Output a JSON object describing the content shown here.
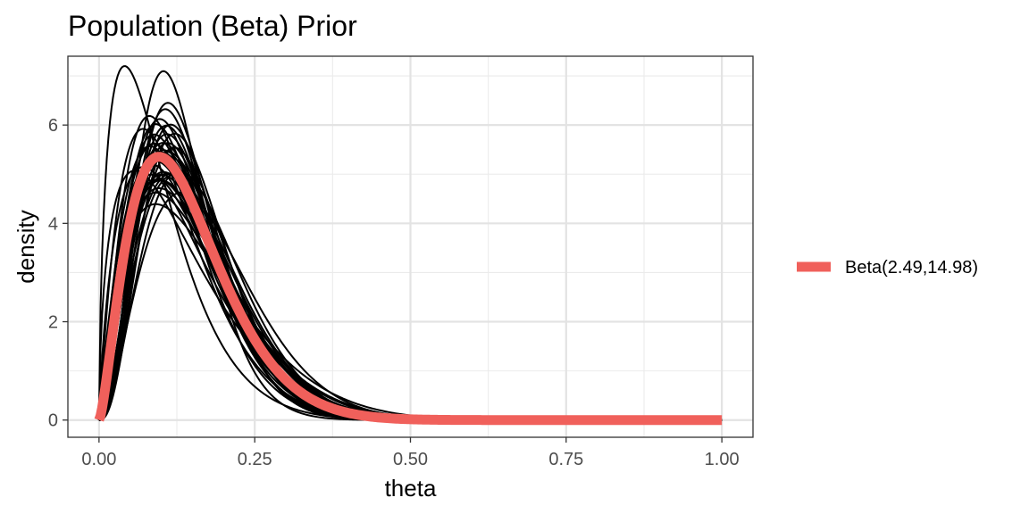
{
  "chart_data": {
    "type": "line",
    "title": "Population (Beta) Prior",
    "xlabel": "theta",
    "ylabel": "density",
    "xlim": [
      -0.05,
      1.05
    ],
    "ylim": [
      -0.35,
      7.4
    ],
    "x_ticks": [
      0,
      0.25,
      0.5,
      0.75,
      1
    ],
    "x_tick_labels": [
      "0.00",
      "0.25",
      "0.50",
      "0.75",
      "1.00"
    ],
    "y_ticks": [
      0,
      2,
      4,
      6
    ],
    "y_tick_labels": [
      "0",
      "2",
      "4",
      "6"
    ],
    "x_minor_ticks": [
      0.125,
      0.375,
      0.625,
      0.875
    ],
    "y_minor_ticks": [
      1,
      3,
      5,
      7
    ],
    "grid": true,
    "legend_position": "right",
    "background_curves_color": "#000000",
    "background_curves": [
      [
        2.49,
        14.98
      ],
      [
        2.2,
        12.5
      ],
      [
        2.8,
        16.5
      ],
      [
        2.0,
        11.0
      ],
      [
        3.2,
        19.0
      ],
      [
        2.6,
        15.5
      ],
      [
        2.4,
        13.5
      ],
      [
        3.0,
        17.0
      ],
      [
        2.3,
        14.0
      ],
      [
        2.7,
        16.0
      ],
      [
        1.9,
        10.0
      ],
      [
        3.5,
        22.0
      ],
      [
        2.5,
        14.0
      ],
      [
        2.1,
        13.0
      ],
      [
        3.1,
        18.0
      ],
      [
        2.9,
        15.0
      ],
      [
        2.4,
        15.5
      ],
      [
        2.6,
        14.2
      ],
      [
        2.2,
        14.5
      ],
      [
        3.3,
        20.0
      ],
      [
        2.8,
        14.8
      ],
      [
        2.0,
        12.0
      ],
      [
        3.0,
        19.5
      ],
      [
        2.5,
        16.5
      ],
      [
        3.6,
        21.0
      ],
      [
        2.3,
        12.8
      ],
      [
        2.7,
        18.0
      ],
      [
        3.4,
        18.5
      ],
      [
        2.15,
        11.8
      ],
      [
        2.85,
        17.2
      ],
      [
        1.55,
        10.0
      ],
      [
        1.6,
        15.0
      ],
      [
        4.0,
        27.0
      ],
      [
        3.8,
        23.5
      ],
      [
        2.05,
        14.8
      ],
      [
        3.7,
        20.5
      ],
      [
        2.45,
        17.5
      ],
      [
        2.95,
        13.8
      ],
      [
        1.8,
        11.5
      ],
      [
        3.25,
        16.2
      ]
    ],
    "series": [
      {
        "name": "Beta(2.49,14.98)",
        "alpha": 2.49,
        "beta": 14.98,
        "color": "#f0605b"
      }
    ]
  }
}
